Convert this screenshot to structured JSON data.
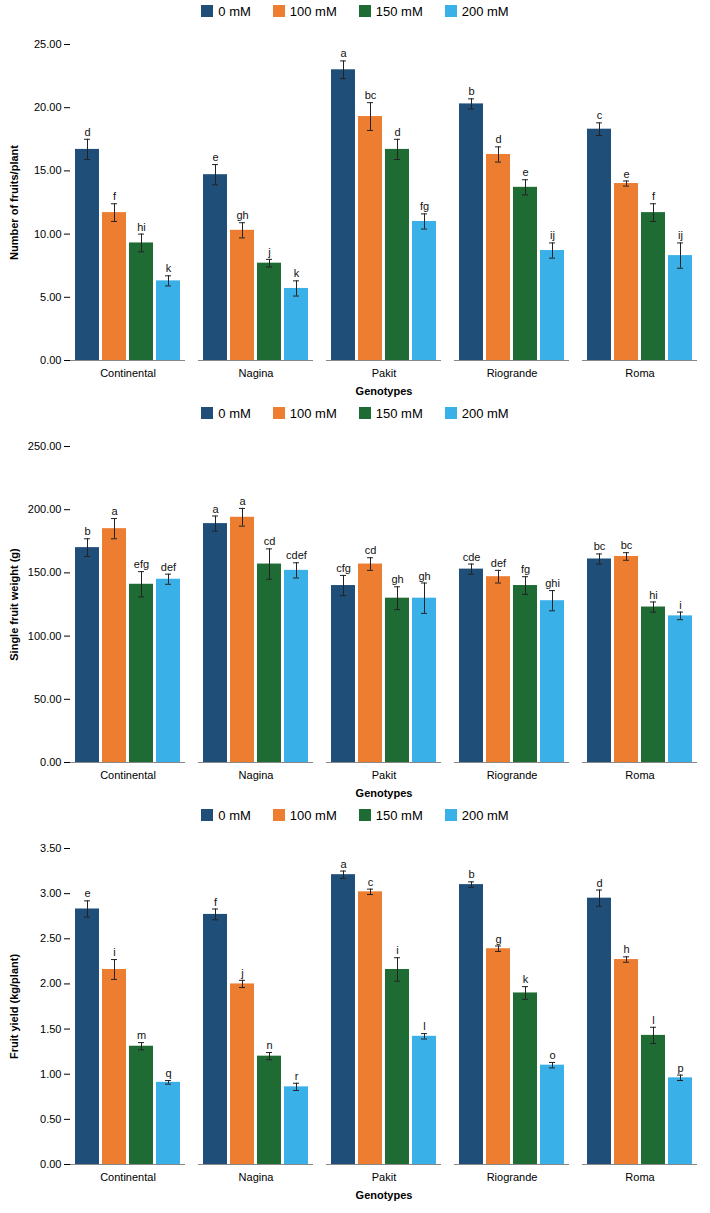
{
  "chart_data": [
    {
      "type": "bar",
      "x_label": "Genotypes",
      "y_label": "Number of fruits/plant",
      "legend": "top",
      "categories": [
        "Continental",
        "Nagina",
        "Pakit",
        "Riogrande",
        "Roma"
      ],
      "ylim": [
        0,
        25
      ],
      "yticks": [
        {
          "value": 0,
          "label": "0.00"
        },
        {
          "value": 5,
          "label": "5.00"
        },
        {
          "value": 10,
          "label": "10.00"
        },
        {
          "value": 15,
          "label": "15.00"
        },
        {
          "value": 20,
          "label": "20.00"
        },
        {
          "value": 25,
          "label": "25.00"
        }
      ],
      "series": [
        {
          "name": "0 mM",
          "color": "#1f4e79",
          "values": [
            16.7,
            14.7,
            23.0,
            20.3,
            18.3
          ],
          "errors": [
            0.8,
            0.8,
            0.7,
            0.4,
            0.5
          ],
          "letters": [
            "d",
            "e",
            "a",
            "b",
            "c"
          ]
        },
        {
          "name": "100 mM",
          "color": "#ed7d31",
          "values": [
            11.7,
            10.3,
            19.3,
            16.3,
            14.0
          ],
          "errors": [
            0.7,
            0.6,
            1.1,
            0.6,
            0.2
          ],
          "letters": [
            "f",
            "gh",
            "bc",
            "d",
            "e"
          ]
        },
        {
          "name": "150 mM",
          "color": "#1e6b34",
          "values": [
            9.3,
            7.7,
            16.7,
            13.7,
            11.7
          ],
          "errors": [
            0.7,
            0.3,
            0.8,
            0.6,
            0.7
          ],
          "letters": [
            "hi",
            "j",
            "d",
            "e",
            "f"
          ]
        },
        {
          "name": "200 mM",
          "color": "#3ab0e8",
          "values": [
            6.3,
            5.7,
            11.0,
            8.7,
            8.3
          ],
          "errors": [
            0.4,
            0.6,
            0.6,
            0.6,
            1.0
          ],
          "letters": [
            "k",
            "k",
            "fg",
            "ij",
            "ij"
          ]
        }
      ]
    },
    {
      "type": "bar",
      "x_label": "Genotypes",
      "y_label": "Single fruit weight (g)",
      "legend": "top",
      "categories": [
        "Continental",
        "Nagina",
        "Pakit",
        "Riogrande",
        "Roma"
      ],
      "ylim": [
        0,
        250
      ],
      "yticks": [
        {
          "value": 0,
          "label": "0.00"
        },
        {
          "value": 50,
          "label": "50.00"
        },
        {
          "value": 100,
          "label": "100.00"
        },
        {
          "value": 150,
          "label": "150.00"
        },
        {
          "value": 200,
          "label": "200.00"
        },
        {
          "value": 250,
          "label": "250.00"
        }
      ],
      "series": [
        {
          "name": "0 mM",
          "color": "#1f4e79",
          "values": [
            170,
            189,
            140,
            153,
            161
          ],
          "errors": [
            7,
            6,
            8,
            4,
            4
          ],
          "letters": [
            "b",
            "a",
            "cfg",
            "cde",
            "bc"
          ]
        },
        {
          "name": "100 mM",
          "color": "#ed7d31",
          "values": [
            185,
            194,
            157,
            147,
            163
          ],
          "errors": [
            8,
            7,
            5,
            5,
            3
          ],
          "letters": [
            "a",
            "a",
            "cd",
            "def",
            "bc"
          ]
        },
        {
          "name": "150 mM",
          "color": "#1e6b34",
          "values": [
            141,
            157,
            130,
            140,
            123
          ],
          "errors": [
            10,
            12,
            9,
            7,
            4
          ],
          "letters": [
            "efg",
            "cd",
            "gh",
            "fg",
            "hi"
          ]
        },
        {
          "name": "200 mM",
          "color": "#3ab0e8",
          "values": [
            145,
            152,
            130,
            128,
            116
          ],
          "errors": [
            4,
            6,
            12,
            8,
            3
          ],
          "letters": [
            "def",
            "cdef",
            "gh",
            "ghi",
            "i"
          ]
        }
      ]
    },
    {
      "type": "bar",
      "x_label": "Genotypes",
      "y_label": "Fruit yield (kg/plant)",
      "legend": "top",
      "categories": [
        "Continental",
        "Nagina",
        "Pakit",
        "Riogrande",
        "Roma"
      ],
      "ylim": [
        0,
        3.5
      ],
      "yticks": [
        {
          "value": 0,
          "label": "0.00"
        },
        {
          "value": 0.5,
          "label": "0.50"
        },
        {
          "value": 1,
          "label": "1.00"
        },
        {
          "value": 1.5,
          "label": "1.50"
        },
        {
          "value": 2,
          "label": "2.00"
        },
        {
          "value": 2.5,
          "label": "2.50"
        },
        {
          "value": 3,
          "label": "3.00"
        },
        {
          "value": 3.5,
          "label": "3.50"
        }
      ],
      "series": [
        {
          "name": "0 mM",
          "color": "#1f4e79",
          "values": [
            2.83,
            2.77,
            3.21,
            3.1,
            2.95
          ],
          "errors": [
            0.09,
            0.06,
            0.04,
            0.03,
            0.09
          ],
          "letters": [
            "e",
            "f",
            "a",
            "b",
            "d"
          ]
        },
        {
          "name": "100 mM",
          "color": "#ed7d31",
          "values": [
            2.16,
            2.0,
            3.02,
            2.39,
            2.27
          ],
          "errors": [
            0.11,
            0.04,
            0.03,
            0.03,
            0.03
          ],
          "letters": [
            "i",
            "j",
            "c",
            "g",
            "h"
          ]
        },
        {
          "name": "150 mM",
          "color": "#1e6b34",
          "values": [
            1.31,
            1.2,
            2.16,
            1.9,
            1.43
          ],
          "errors": [
            0.04,
            0.04,
            0.13,
            0.07,
            0.09
          ],
          "letters": [
            "m",
            "n",
            "i",
            "k",
            "l"
          ]
        },
        {
          "name": "200 mM",
          "color": "#3ab0e8",
          "values": [
            0.91,
            0.86,
            1.42,
            1.1,
            0.96
          ],
          "errors": [
            0.02,
            0.04,
            0.03,
            0.03,
            0.03
          ],
          "letters": [
            "q",
            "r",
            "l",
            "o",
            "p"
          ]
        }
      ]
    }
  ]
}
